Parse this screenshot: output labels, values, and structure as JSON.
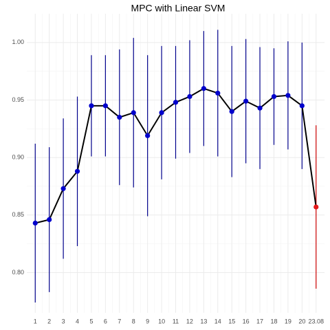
{
  "chart_data": {
    "type": "line",
    "title": "MPC with Linear SVM",
    "categories": [
      "1",
      "2",
      "3",
      "4",
      "5",
      "6",
      "7",
      "8",
      "9",
      "10",
      "11",
      "12",
      "13",
      "14",
      "15",
      "16",
      "17",
      "18",
      "19",
      "20",
      "23.08"
    ],
    "series": [
      {
        "line_color": "#000000",
        "values": [
          0.843,
          0.846,
          0.873,
          0.888,
          0.945,
          0.945,
          0.935,
          0.939,
          0.919,
          0.939,
          0.948,
          0.953,
          0.96,
          0.956,
          0.94,
          0.949,
          0.943,
          0.953,
          0.954,
          0.945,
          0.857
        ],
        "errors": [
          0.069,
          0.063,
          0.061,
          0.065,
          0.044,
          0.044,
          0.059,
          0.065,
          0.07,
          0.058,
          0.049,
          0.049,
          0.05,
          0.055,
          0.057,
          0.054,
          0.053,
          0.042,
          0.047,
          0.055,
          0.071
        ],
        "point_colors": [
          "#0000cc",
          "#0000cc",
          "#0000cc",
          "#0000cc",
          "#0000cc",
          "#0000cc",
          "#0000cc",
          "#0000cc",
          "#0000cc",
          "#0000cc",
          "#0000cc",
          "#0000cc",
          "#0000cc",
          "#0000cc",
          "#0000cc",
          "#0000cc",
          "#0000cc",
          "#0000cc",
          "#0000cc",
          "#0000cc",
          "#e31a1c"
        ],
        "error_colors": [
          "#00008b",
          "#00008b",
          "#00008b",
          "#00008b",
          "#00008b",
          "#00008b",
          "#00008b",
          "#00008b",
          "#00008b",
          "#00008b",
          "#00008b",
          "#00008b",
          "#00008b",
          "#00008b",
          "#00008b",
          "#00008b",
          "#00008b",
          "#00008b",
          "#00008b",
          "#00008b",
          "#cc0000"
        ]
      }
    ],
    "ylim": [
      0.765,
      1.025
    ],
    "yticks": [
      {
        "value": 0.8,
        "label": "0.80"
      },
      {
        "value": 0.85,
        "label": "0.85"
      },
      {
        "value": 0.9,
        "label": "0.90"
      },
      {
        "value": 0.95,
        "label": "0.95"
      },
      {
        "value": 1.0,
        "label": "1.00"
      }
    ],
    "grid": true,
    "minor_grid": true
  }
}
